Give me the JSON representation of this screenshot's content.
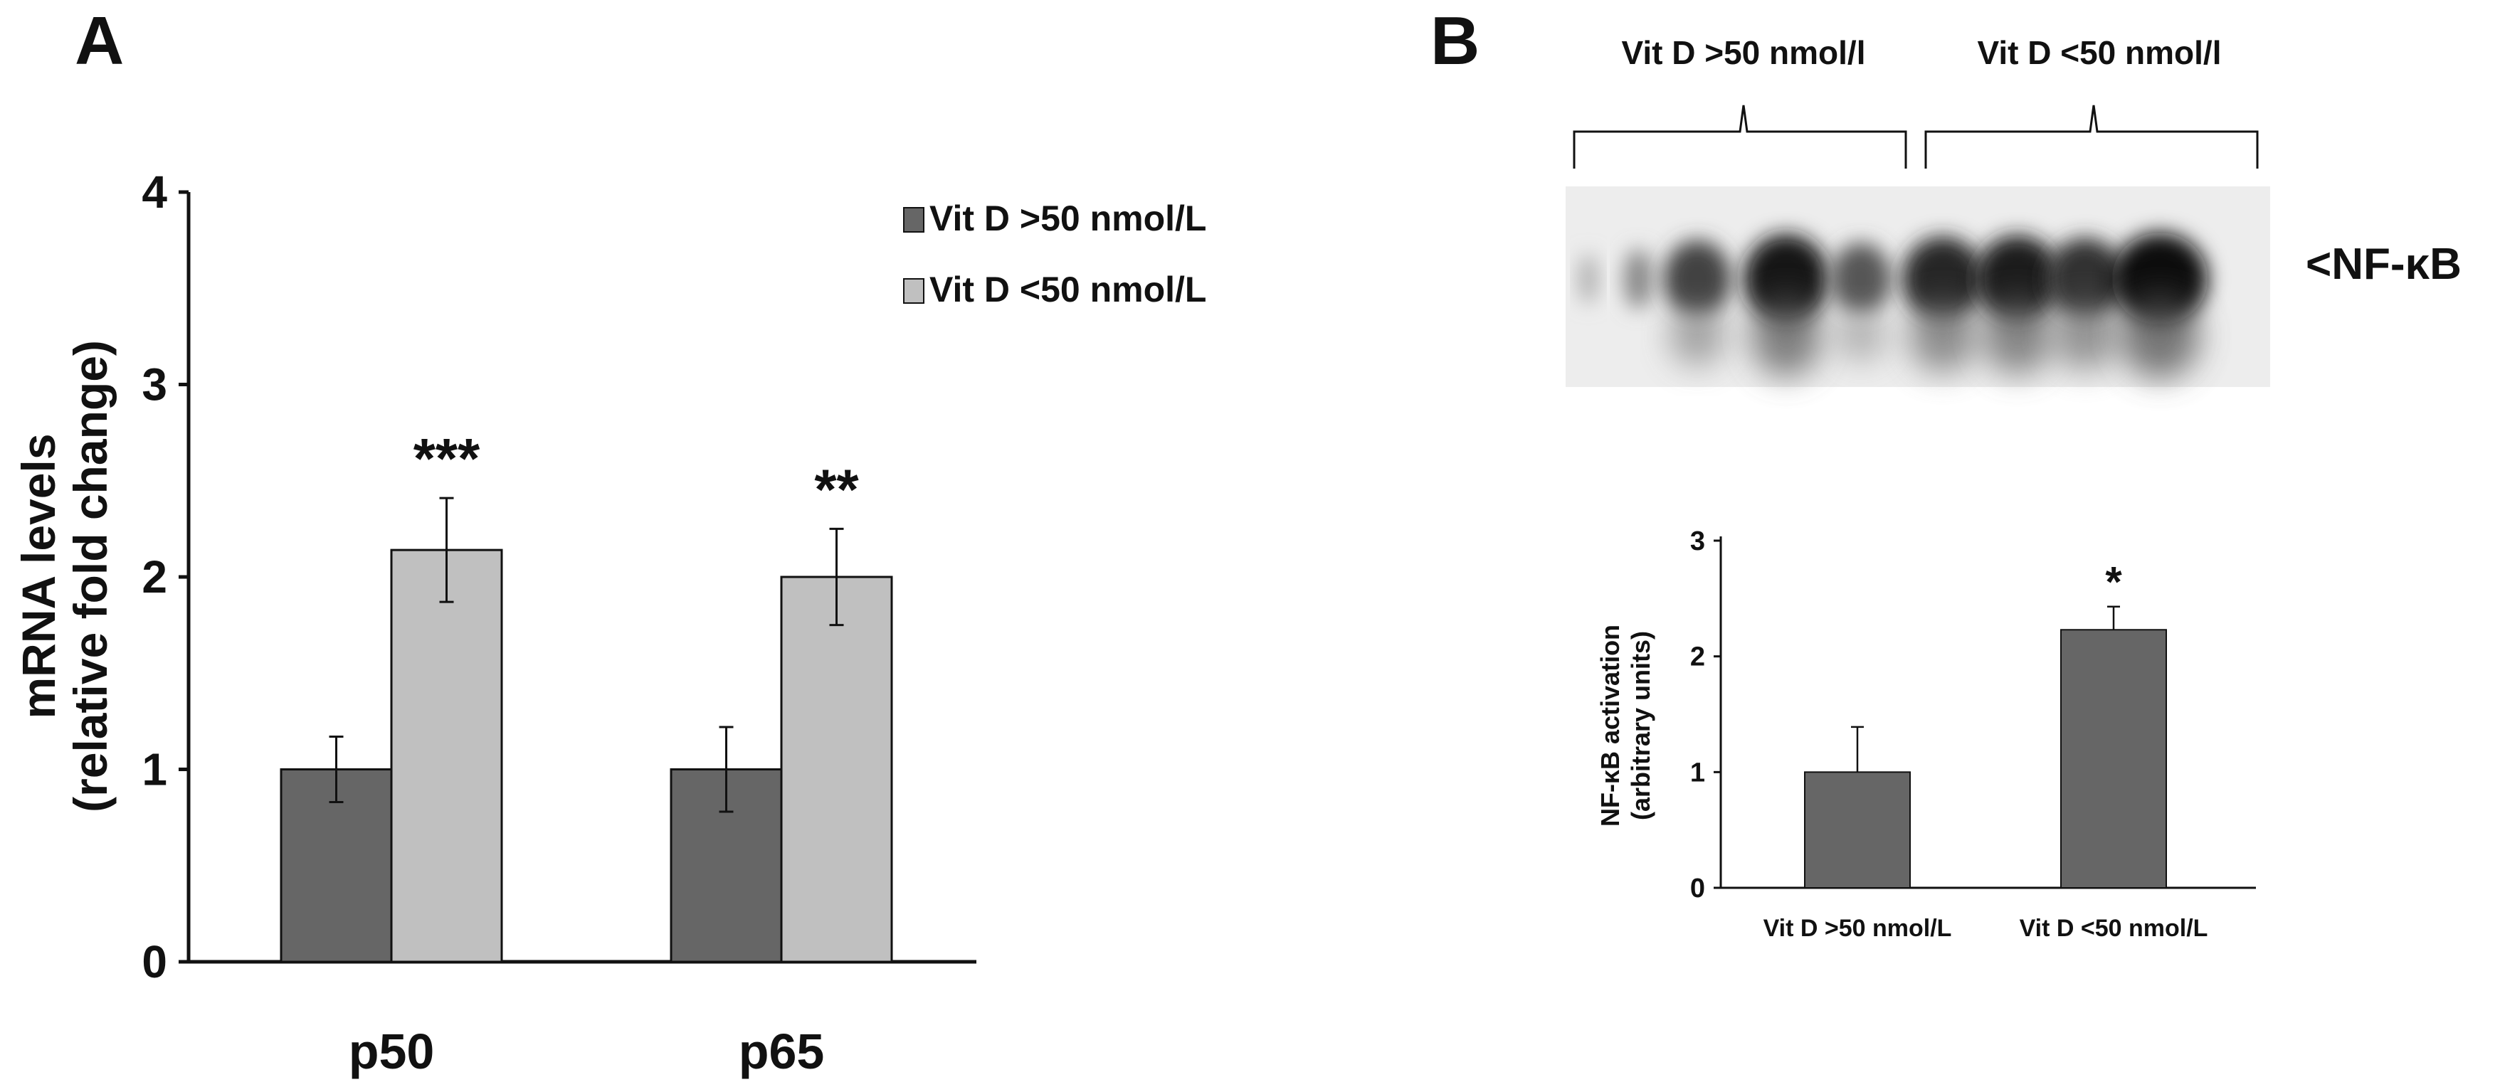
{
  "colors": {
    "dark_bar": "#666666",
    "light_bar": "#c0c0c0",
    "axis": "#111111"
  },
  "panel_a": {
    "letter": "A"
  },
  "panel_b": {
    "letter": "B",
    "blot": {
      "group_labels": [
        "Vit D >50 nmol/l",
        "Vit D <50 nmol/l"
      ],
      "marker_label": "<NF-κB",
      "lane_intensity": [
        0.15,
        0.35,
        0.7,
        0.95,
        0.6,
        0.85,
        0.9,
        0.8,
        1.0
      ]
    }
  },
  "chart_data": [
    {
      "type": "bar",
      "panel": "A",
      "title": "",
      "xlabel": "",
      "ylabel_line1": "mRNA levels",
      "ylabel_line2": "(relative fold change)",
      "ylim": [
        0,
        4
      ],
      "yticks": [
        "0",
        "1",
        "2",
        "3",
        "4"
      ],
      "categories": [
        "p50",
        "p65"
      ],
      "legend_position": "top-right",
      "series": [
        {
          "name": "Vit D >50 nmol/L",
          "color": "#666666",
          "values": [
            1.0,
            1.0
          ],
          "errors": [
            0.17,
            0.22
          ]
        },
        {
          "name": "Vit D <50 nmol/L",
          "color": "#c0c0c0",
          "values": [
            2.14,
            2.0
          ],
          "errors": [
            0.27,
            0.25
          ]
        }
      ],
      "significance": [
        "***",
        "**"
      ],
      "grid": false
    },
    {
      "type": "bar",
      "panel": "B",
      "title": "",
      "ylabel_line1": "NF-κB activation",
      "ylabel_line2": "(arbitrary units)",
      "ylim": [
        0,
        3
      ],
      "yticks": [
        "0",
        "1",
        "2",
        "3"
      ],
      "categories": [
        "Vit D >50 nmol/L",
        "Vit D <50 nmol/L"
      ],
      "values": [
        1.0,
        2.23
      ],
      "errors": [
        0.39,
        0.2
      ],
      "significance": [
        "",
        "*"
      ],
      "color": "#666666",
      "grid": false
    }
  ]
}
